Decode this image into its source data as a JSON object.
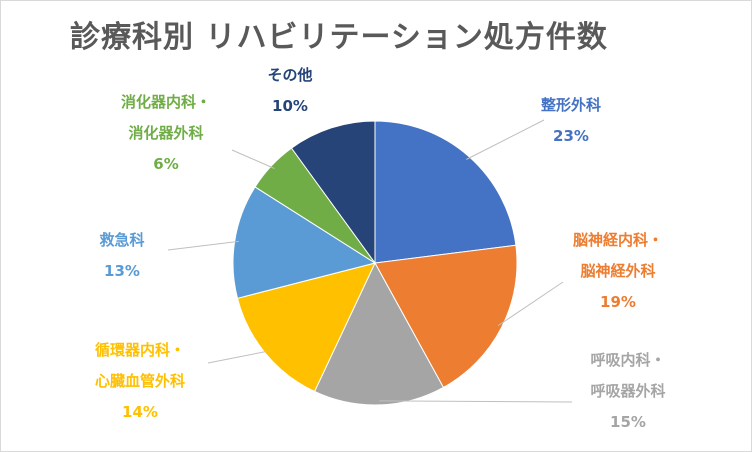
{
  "chart_data": {
    "type": "pie",
    "title": "診療科別 リハビリテーション処方件数",
    "slices": [
      {
        "label_lines": [
          "整形外科"
        ],
        "percent_label": "23%",
        "value": 23,
        "color": "#4472c4"
      },
      {
        "label_lines": [
          "脳神経内科・",
          "脳神経外科"
        ],
        "percent_label": "19%",
        "value": 19,
        "color": "#ed7d31"
      },
      {
        "label_lines": [
          "呼吸内科・",
          "呼吸器外科"
        ],
        "percent_label": "15%",
        "value": 15,
        "color": "#a5a5a5"
      },
      {
        "label_lines": [
          "循環器内科・",
          "心臓血管外科"
        ],
        "percent_label": "14%",
        "value": 14,
        "color": "#ffc000"
      },
      {
        "label_lines": [
          "救急科"
        ],
        "percent_label": "13%",
        "value": 13,
        "color": "#5b9bd5"
      },
      {
        "label_lines": [
          "消化器内科・",
          "消化器外科"
        ],
        "percent_label": "6%",
        "value": 6,
        "color": "#70ad47"
      },
      {
        "label_lines": [
          "その他"
        ],
        "percent_label": "10%",
        "value": 10,
        "color": "#264478"
      }
    ]
  }
}
